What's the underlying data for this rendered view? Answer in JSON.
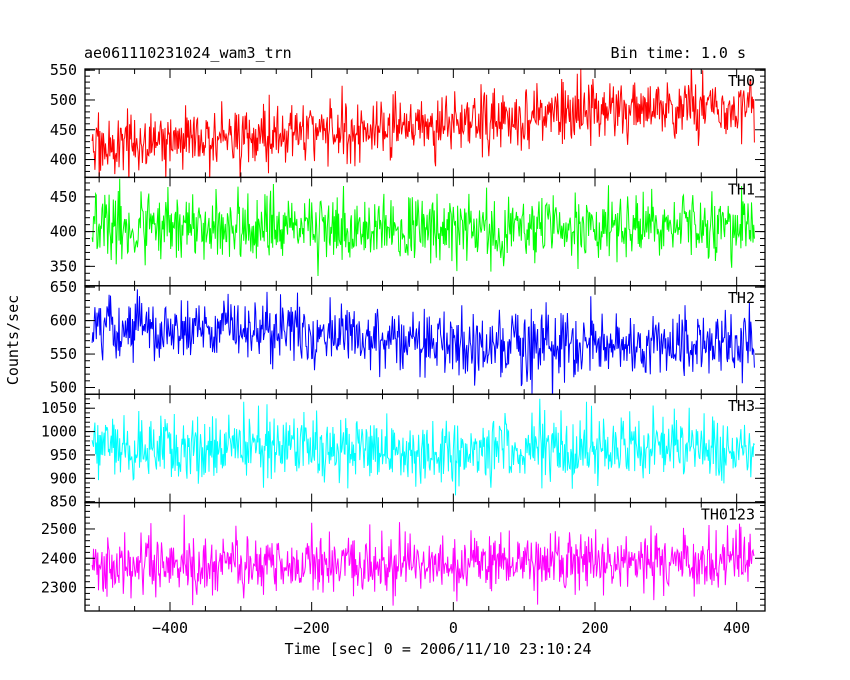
{
  "header": {
    "left_title": "ae061110231024_wam3_trn",
    "right_title": "Bin time: 1.0 s"
  },
  "axes": {
    "xlabel": "Time [sec] 0 = 2006/11/10 23:10:24",
    "ylabel": "Counts/sec"
  },
  "chart_data": {
    "type": "line",
    "xlim": [
      -520,
      440
    ],
    "x_range_data": [
      -510,
      425
    ],
    "x_ticks": [
      -400,
      -200,
      0,
      200,
      400
    ],
    "x_tick_labels": [
      "−400",
      "−200",
      "0",
      "200",
      "400"
    ],
    "bin_time_s": 1.0,
    "grid": false,
    "panels": [
      {
        "name": "TH0",
        "color": "#ff0000",
        "ylim": [
          370,
          552
        ],
        "yticks": [
          400,
          450,
          500,
          550
        ],
        "trend": [
          [
            -510,
            425
          ],
          [
            -300,
            440
          ],
          [
            0,
            462
          ],
          [
            200,
            478
          ],
          [
            425,
            490
          ]
        ],
        "noise": 26
      },
      {
        "name": "TH1",
        "color": "#00ff00",
        "ylim": [
          322,
          478
        ],
        "yticks": [
          350,
          400,
          450
        ],
        "trend": [
          [
            -510,
            405
          ],
          [
            0,
            403
          ],
          [
            425,
            407
          ]
        ],
        "noise": 24
      },
      {
        "name": "TH2",
        "color": "#0000ff",
        "ylim": [
          490,
          652
        ],
        "yticks": [
          500,
          550,
          600,
          650
        ],
        "trend": [
          [
            -510,
            590
          ],
          [
            -250,
            584
          ],
          [
            0,
            565
          ],
          [
            200,
            563
          ],
          [
            425,
            562
          ]
        ],
        "noise": 24
      },
      {
        "name": "TH3",
        "color": "#00ffff",
        "ylim": [
          848,
          1080
        ],
        "yticks": [
          850,
          900,
          950,
          1000,
          1050
        ],
        "trend": [
          [
            -510,
            968
          ],
          [
            0,
            960
          ],
          [
            425,
            965
          ]
        ],
        "noise": 34
      },
      {
        "name": "TH0123",
        "color": "#ff00ff",
        "ylim": [
          2220,
          2590
        ],
        "yticks": [
          2300,
          2400,
          2500
        ],
        "trend": [
          [
            -510,
            2370
          ],
          [
            0,
            2380
          ],
          [
            425,
            2400
          ]
        ],
        "noise": 52
      }
    ]
  }
}
